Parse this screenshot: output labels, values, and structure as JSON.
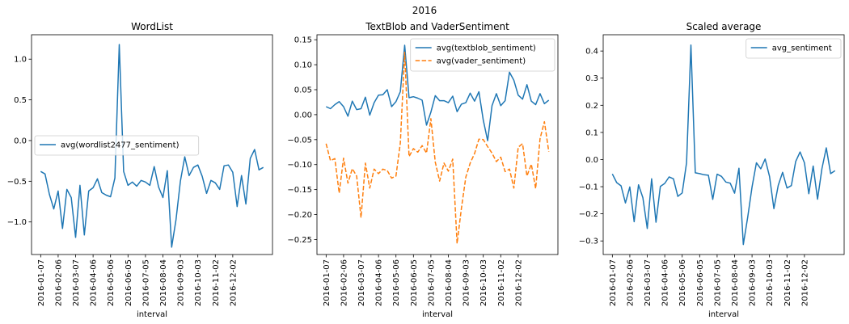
{
  "figure": {
    "suptitle": "2016"
  },
  "colors": {
    "blue": "#1f77b4",
    "orange": "#ff7f0e"
  },
  "chart_data": [
    {
      "type": "line",
      "title": "WordList",
      "xlabel": "interval",
      "ylabel": "",
      "ylim": [
        -1.4,
        1.3
      ],
      "yticks": [
        1.0,
        0.5,
        0.0,
        -0.5,
        -1.0
      ],
      "ytick_labels": [
        "1.0",
        "0.5",
        "0.0",
        "−0.5",
        "−1.0"
      ],
      "xticks": [
        "2016-01-07",
        "2016-02-06",
        "2016-03-07",
        "2016-04-06",
        "2016-05-06",
        "2016-06-05",
        "2016-07-05",
        "2016-08-04",
        "2016-09-03",
        "2016-10-03",
        "2016-11-02",
        "2016-12-02"
      ],
      "legend_position": "center-left",
      "series": [
        {
          "name": "avg(wordlist2477_sentiment)",
          "color": "#1f77b4",
          "style": "solid",
          "values": [
            -0.38,
            -0.41,
            -0.66,
            -0.84,
            -0.62,
            -1.08,
            -0.6,
            -0.7,
            -1.19,
            -0.55,
            -1.16,
            -0.62,
            -0.58,
            -0.47,
            -0.64,
            -0.67,
            -0.69,
            -0.46,
            1.18,
            -0.38,
            -0.55,
            -0.51,
            -0.56,
            -0.49,
            -0.51,
            -0.55,
            -0.32,
            -0.57,
            -0.7,
            -0.37,
            -1.31,
            -0.97,
            -0.5,
            -0.2,
            -0.43,
            -0.33,
            -0.3,
            -0.44,
            -0.65,
            -0.49,
            -0.52,
            -0.6,
            -0.31,
            -0.3,
            -0.39,
            -0.81,
            -0.43,
            -0.78,
            -0.22,
            -0.11,
            -0.36,
            -0.33
          ]
        }
      ]
    },
    {
      "type": "line",
      "title": "TextBlob and VaderSentiment",
      "xlabel": "interval",
      "ylabel": "",
      "ylim": [
        -0.28,
        0.16
      ],
      "yticks": [
        0.15,
        0.1,
        0.05,
        0.0,
        -0.05,
        -0.1,
        -0.15,
        -0.2,
        -0.25
      ],
      "ytick_labels": [
        "0.15",
        "0.10",
        "0.05",
        "0.00",
        "−0.05",
        "−0.10",
        "−0.15",
        "−0.20",
        "−0.25"
      ],
      "xticks": [
        "2016-01-07",
        "2016-02-06",
        "2016-03-07",
        "2016-04-06",
        "2016-05-06",
        "2016-06-05",
        "2016-07-05",
        "2016-08-04",
        "2016-09-03",
        "2016-10-03",
        "2016-11-02",
        "2016-12-02"
      ],
      "legend_position": "upper right",
      "series": [
        {
          "name": "avg(textblob_sentiment)",
          "color": "#1f77b4",
          "style": "solid",
          "values": [
            0.016,
            0.012,
            0.02,
            0.026,
            0.016,
            -0.003,
            0.027,
            0.01,
            0.012,
            0.035,
            -0.001,
            0.024,
            0.039,
            0.04,
            0.05,
            0.016,
            0.026,
            0.046,
            0.139,
            0.034,
            0.036,
            0.033,
            0.029,
            -0.021,
            0.005,
            0.038,
            0.028,
            0.028,
            0.024,
            0.037,
            0.006,
            0.021,
            0.024,
            0.043,
            0.027,
            0.046,
            -0.011,
            -0.052,
            0.018,
            0.042,
            0.018,
            0.028,
            0.085,
            0.069,
            0.039,
            0.031,
            0.06,
            0.027,
            0.02,
            0.042,
            0.022,
            0.029
          ]
        },
        {
          "name": "avg(vader_sentiment)",
          "color": "#ff7f0e",
          "style": "dashed",
          "values": [
            -0.058,
            -0.092,
            -0.088,
            -0.157,
            -0.087,
            -0.137,
            -0.108,
            -0.123,
            -0.206,
            -0.097,
            -0.147,
            -0.109,
            -0.118,
            -0.109,
            -0.112,
            -0.127,
            -0.123,
            -0.057,
            0.125,
            -0.084,
            -0.068,
            -0.075,
            -0.062,
            -0.077,
            -0.008,
            -0.095,
            -0.133,
            -0.097,
            -0.113,
            -0.089,
            -0.258,
            -0.187,
            -0.125,
            -0.097,
            -0.078,
            -0.049,
            -0.05,
            -0.064,
            -0.077,
            -0.094,
            -0.085,
            -0.114,
            -0.109,
            -0.147,
            -0.065,
            -0.058,
            -0.123,
            -0.099,
            -0.148,
            -0.048,
            -0.014,
            -0.074
          ]
        }
      ]
    },
    {
      "type": "line",
      "title": "Scaled average",
      "xlabel": "interval",
      "ylabel": "",
      "ylim": [
        -0.35,
        0.46
      ],
      "yticks": [
        0.4,
        0.3,
        0.2,
        0.1,
        0.0,
        -0.1,
        -0.2,
        -0.3
      ],
      "ytick_labels": [
        "0.4",
        "0.3",
        "0.2",
        "0.1",
        "0.0",
        "−0.1",
        "−0.2",
        "−0.3"
      ],
      "xticks": [
        "2016-01-07",
        "2016-02-06",
        "2016-03-07",
        "2016-04-06",
        "2016-05-06",
        "2016-06-05",
        "2016-07-05",
        "2016-08-04",
        "2016-09-03",
        "2016-10-03",
        "2016-11-02",
        "2016-12-02"
      ],
      "legend_position": "upper right",
      "series": [
        {
          "name": "avg_sentiment",
          "color": "#1f77b4",
          "style": "solid",
          "values": [
            -0.053,
            -0.085,
            -0.097,
            -0.16,
            -0.101,
            -0.229,
            -0.093,
            -0.141,
            -0.254,
            -0.071,
            -0.231,
            -0.099,
            -0.088,
            -0.064,
            -0.071,
            -0.136,
            -0.123,
            -0.012,
            0.422,
            -0.049,
            -0.052,
            -0.056,
            -0.058,
            -0.147,
            -0.054,
            -0.062,
            -0.083,
            -0.087,
            -0.124,
            -0.032,
            -0.313,
            -0.213,
            -0.101,
            -0.012,
            -0.034,
            0.002,
            -0.062,
            -0.181,
            -0.095,
            -0.047,
            -0.105,
            -0.096,
            -0.007,
            0.028,
            -0.012,
            -0.126,
            -0.024,
            -0.146,
            -0.034,
            0.043,
            -0.052,
            -0.041
          ]
        }
      ]
    }
  ]
}
